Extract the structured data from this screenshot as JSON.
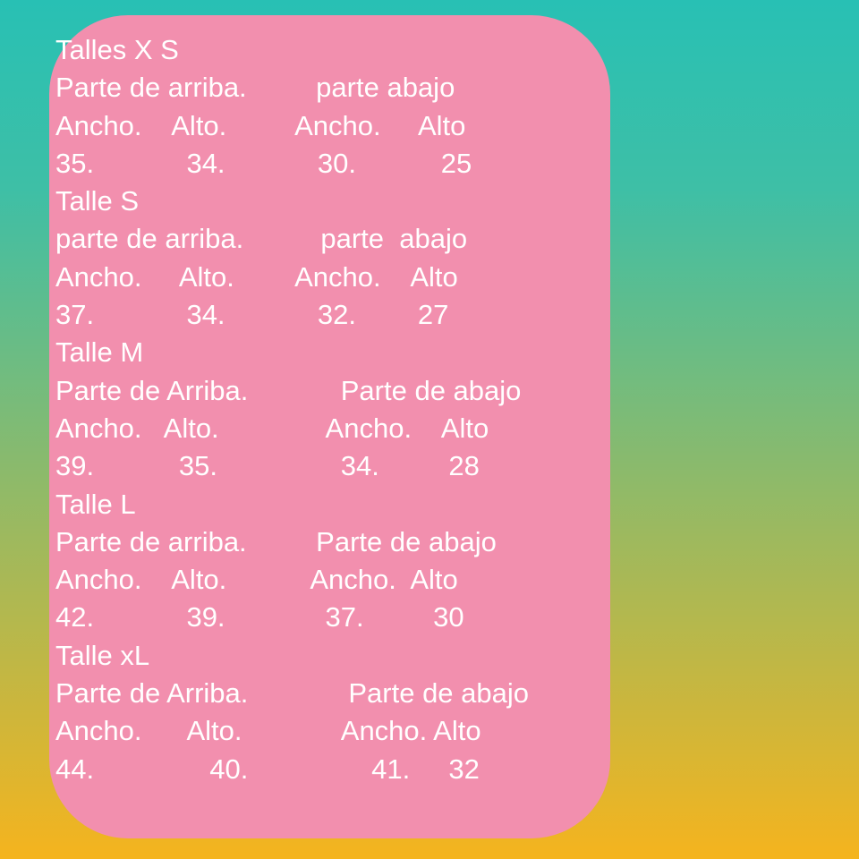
{
  "background": {
    "gradient_top_color": "#28c0b4",
    "gradient_bottom_color": "#f5b41e"
  },
  "card": {
    "background_color": "#f28fae",
    "text_color": "#ffffff",
    "sections": [
      {
        "title": "Talles X S",
        "parts": "Parte de arriba.         parte abajo",
        "columns": "Ancho.    Alto.         Ancho.     Alto",
        "values": "35.            34.            30.           25"
      },
      {
        "title": "Talle S",
        "parts": "parte de arriba.          parte  abajo",
        "columns": "Ancho.     Alto.        Ancho.    Alto",
        "values": "37.            34.            32.        27"
      },
      {
        "title": "Talle M",
        "parts": "Parte de Arriba.            Parte de abajo",
        "columns": "Ancho.   Alto.              Ancho.    Alto",
        "values": "39.           35.                34.         28"
      },
      {
        "title": "Talle L",
        "parts": "Parte de arriba.         Parte de abajo",
        "columns": "Ancho.    Alto.           Ancho.  Alto",
        "values": "42.            39.             37.         30"
      },
      {
        "title": "Talle xL",
        "parts": "Parte de Arriba.             Parte de abajo",
        "columns": "Ancho.      Alto.             Ancho. Alto",
        "values": "44.               40.                41.     32"
      }
    ]
  }
}
